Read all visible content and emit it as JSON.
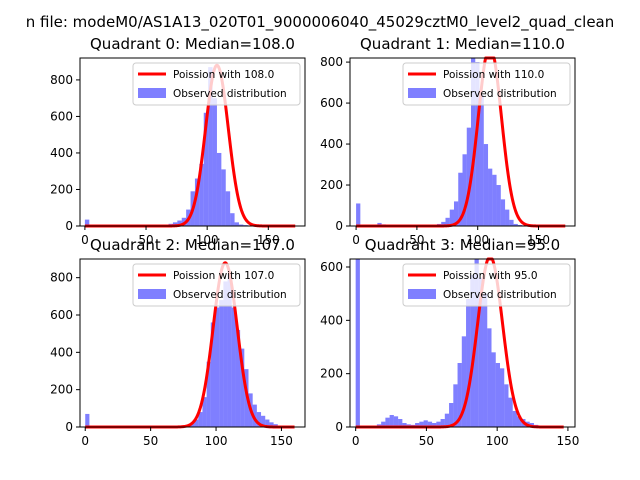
{
  "figure": {
    "suptitle": "n file: modeM0/AS1A13_020T01_9000006040_45029cztM0_level2_quad_clean"
  },
  "colors": {
    "fit": "#ff0000",
    "hist": "#0000ff"
  },
  "chart_data": [
    {
      "type": "bar+line",
      "title": "Quadrant 0: Median=108.0",
      "xlabel": "",
      "ylabel": "",
      "xlim": [
        -4,
        180
      ],
      "ylim": [
        0,
        920
      ],
      "xticks": [
        0,
        50,
        100,
        150
      ],
      "yticks": [
        0,
        200,
        400,
        600,
        800
      ],
      "legend_position": "upper right",
      "series": [
        {
          "name": "Poission with 108.0",
          "kind": "line",
          "mean": 108.0,
          "sigma": 9.3,
          "peak": 880
        },
        {
          "name": "Observed distribution",
          "kind": "histogram",
          "bin_width": 3.6,
          "start": 0,
          "values": [
            35,
            5,
            3,
            2,
            2,
            2,
            2,
            2,
            2,
            2,
            2,
            2,
            2,
            2,
            3,
            3,
            4,
            5,
            8,
            12,
            20,
            30,
            45,
            90,
            190,
            260,
            340,
            620,
            870,
            700,
            400,
            310,
            190,
            70,
            20,
            8,
            5,
            3,
            2,
            2,
            2,
            2,
            2,
            2,
            2,
            1,
            1,
            1,
            1,
            1
          ]
        }
      ]
    },
    {
      "type": "bar+line",
      "title": "Quadrant 1: Median=110.0",
      "xlabel": "",
      "ylabel": "",
      "xlim": [
        -5,
        180
      ],
      "ylim": [
        0,
        820
      ],
      "xticks": [
        0,
        50,
        100,
        150
      ],
      "yticks": [
        0,
        200,
        400,
        600,
        800
      ],
      "legend_position": "upper right",
      "series": [
        {
          "name": "Poission with 110.0",
          "kind": "line",
          "mean": 110.0,
          "sigma": 9.5,
          "peak": 880
        },
        {
          "name": "Observed distribution",
          "kind": "histogram",
          "bin_width": 3.5,
          "start": 0,
          "values": [
            110,
            3,
            2,
            2,
            5,
            15,
            8,
            3,
            2,
            2,
            2,
            2,
            2,
            2,
            2,
            2,
            3,
            4,
            6,
            10,
            20,
            40,
            80,
            120,
            260,
            350,
            480,
            870,
            800,
            640,
            400,
            280,
            250,
            200,
            130,
            80,
            30,
            10,
            5,
            3,
            2,
            2,
            2,
            1,
            1,
            1,
            1,
            1,
            1,
            1
          ]
        }
      ]
    },
    {
      "type": "bar+line",
      "title": "Quadrant 2: Median=107.0",
      "xlabel": "",
      "ylabel": "",
      "xlim": [
        -4,
        168
      ],
      "ylim": [
        0,
        900
      ],
      "xticks": [
        0,
        50,
        100,
        150
      ],
      "yticks": [
        0,
        200,
        400,
        600,
        800
      ],
      "legend_position": "upper right",
      "series": [
        {
          "name": "Poission with 107.0",
          "kind": "line",
          "mean": 107.0,
          "sigma": 9.2,
          "peak": 880
        },
        {
          "name": "Observed distribution",
          "kind": "histogram",
          "bin_width": 3.2,
          "start": 0,
          "values": [
            70,
            3,
            2,
            2,
            2,
            2,
            2,
            2,
            2,
            2,
            2,
            2,
            2,
            2,
            2,
            2,
            2,
            2,
            2,
            2,
            2,
            2,
            3,
            5,
            10,
            20,
            40,
            80,
            160,
            350,
            560,
            640,
            680,
            780,
            820,
            640,
            520,
            420,
            310,
            180,
            120,
            80,
            60,
            40,
            25,
            15,
            8,
            4,
            2,
            1
          ]
        }
      ]
    },
    {
      "type": "bar+line",
      "title": "Quadrant 3: Median=95.0",
      "xlabel": "",
      "ylabel": "",
      "xlim": [
        -4,
        155
      ],
      "ylim": [
        0,
        630
      ],
      "xticks": [
        0,
        50,
        100,
        150
      ],
      "yticks": [
        0,
        200,
        400,
        600
      ],
      "legend_position": "upper right",
      "series": [
        {
          "name": "Poission with 95.0",
          "kind": "line",
          "mean": 95.0,
          "sigma": 8.8,
          "peak": 640
        },
        {
          "name": "Observed distribution",
          "kind": "histogram",
          "bin_width": 3.0,
          "start": 0,
          "values": [
            630,
            5,
            3,
            2,
            3,
            10,
            20,
            35,
            45,
            40,
            30,
            15,
            10,
            8,
            15,
            20,
            25,
            20,
            15,
            20,
            30,
            50,
            90,
            160,
            240,
            340,
            480,
            570,
            630,
            560,
            500,
            370,
            280,
            240,
            220,
            160,
            110,
            60,
            40,
            30,
            20,
            15,
            8,
            4,
            2,
            1,
            1,
            1,
            1,
            1
          ]
        }
      ]
    }
  ]
}
